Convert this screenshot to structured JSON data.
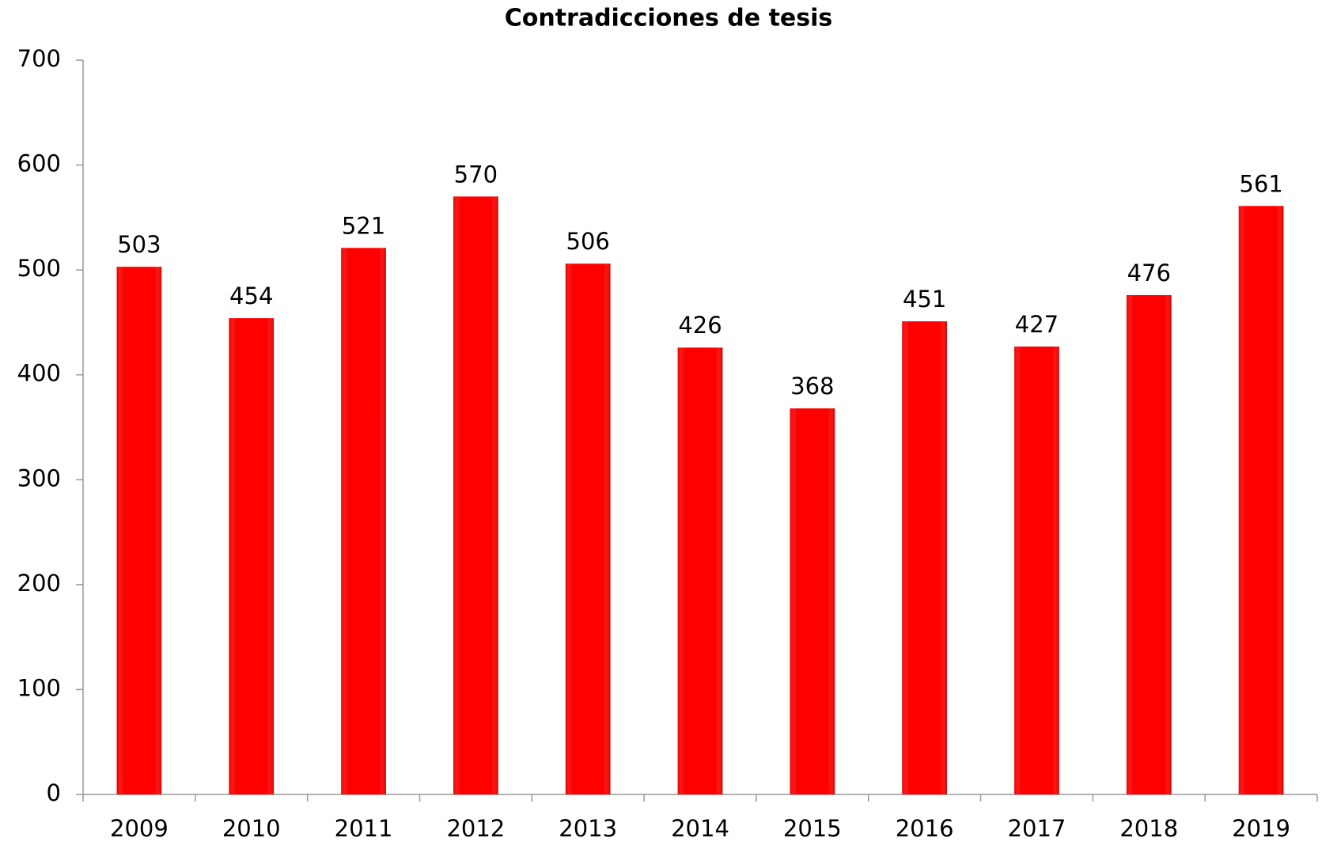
{
  "chart_data": {
    "type": "bar",
    "title": "Contradicciones de tesis",
    "categories": [
      "2009",
      "2010",
      "2011",
      "2012",
      "2013",
      "2014",
      "2015",
      "2016",
      "2017",
      "2018",
      "2019"
    ],
    "values": [
      503,
      454,
      521,
      570,
      506,
      426,
      368,
      451,
      427,
      476,
      561
    ],
    "color": "#ff0000",
    "ylim": [
      0,
      700
    ],
    "yticks": [
      0,
      100,
      200,
      300,
      400,
      500,
      600,
      700
    ],
    "grid": false
  }
}
